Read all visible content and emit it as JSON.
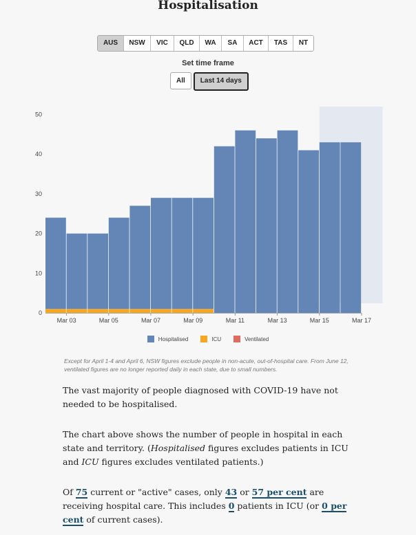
{
  "title": "Hospitalisation",
  "state_tabs": [
    {
      "label": "AUS",
      "active": true,
      "w": 37
    },
    {
      "label": "NSW",
      "active": false,
      "w": 38
    },
    {
      "label": "VIC",
      "active": false,
      "w": 33
    },
    {
      "label": "QLD",
      "active": false,
      "w": 36
    },
    {
      "label": "WA",
      "active": false,
      "w": 31
    },
    {
      "label": "SA",
      "active": false,
      "w": 31
    },
    {
      "label": "ACT",
      "active": false,
      "w": 35
    },
    {
      "label": "TAS",
      "active": false,
      "w": 35
    },
    {
      "label": "NT",
      "active": false,
      "w": 29
    }
  ],
  "time_frame": {
    "label": "Set time frame",
    "buttons": [
      {
        "label": "All",
        "active": false
      },
      {
        "label": "Last 14 days",
        "active": true
      }
    ]
  },
  "chart_data": {
    "type": "bar",
    "stacked": true,
    "categories": [
      "Mar 02",
      "Mar 03",
      "Mar 04",
      "Mar 05",
      "Mar 06",
      "Mar 07",
      "Mar 08",
      "Mar 09",
      "Mar 10",
      "Mar 11",
      "Mar 12",
      "Mar 13",
      "Mar 14",
      "Mar 15",
      "Mar 16"
    ],
    "x_tick_labels": [
      "Mar 03",
      "Mar 05",
      "Mar 07",
      "Mar 09",
      "Mar 11",
      "Mar 13",
      "Mar 15",
      "Mar 17"
    ],
    "series": [
      {
        "name": "Hospitalised",
        "color": "#6386b7",
        "values": [
          23,
          19,
          19,
          23,
          26,
          28,
          28,
          28,
          42,
          46,
          44,
          46,
          41,
          43,
          43
        ]
      },
      {
        "name": "ICU",
        "color": "#f5a623",
        "values": [
          1,
          1,
          1,
          1,
          1,
          1,
          1,
          1,
          0,
          0,
          0,
          0,
          0,
          0,
          0
        ]
      },
      {
        "name": "Ventilated",
        "color": "#e06b5f",
        "values": [
          0,
          0,
          0,
          0,
          0,
          0,
          0,
          0,
          0,
          0,
          0,
          0,
          0,
          0,
          0
        ]
      }
    ],
    "ylim": [
      0,
      52
    ],
    "y_ticks": [
      0,
      10,
      20,
      30,
      40,
      50
    ],
    "shaded_region_color": "#e4e8f1",
    "grid": false,
    "legend_position": "bottom"
  },
  "note": "Except for April 1-4 and April 6, NSW figures exclude people in non-acute, out-of-hospital care. From June 12, ventilated figures are no longer reported daily in each state, due to small numbers.",
  "paragraphs": {
    "p1": "The vast majority of people diagnosed with COVID-19 have not needed to be hospitalised.",
    "p2_a": "The chart above shows the number of people in hospital in each state and territory. (",
    "p2_b": "Hospitalised",
    "p2_c": " figures excludes patients in ICU and ",
    "p2_d": "ICU",
    "p2_e": " figures excludes ventilated patients.)",
    "p3_a": "Of ",
    "p3_active_cases": "75",
    "p3_b": " current or \"active\" cases, only ",
    "p3_hospital_count": "43",
    "p3_c": " or ",
    "p3_hospital_pct": "57 per cent",
    "p3_d": " are receiving hospital care. This includes ",
    "p3_icu_count": "0",
    "p3_e": " patients in ICU (or ",
    "p3_icu_pct": "0 per cent",
    "p3_f": " of current cases)."
  }
}
